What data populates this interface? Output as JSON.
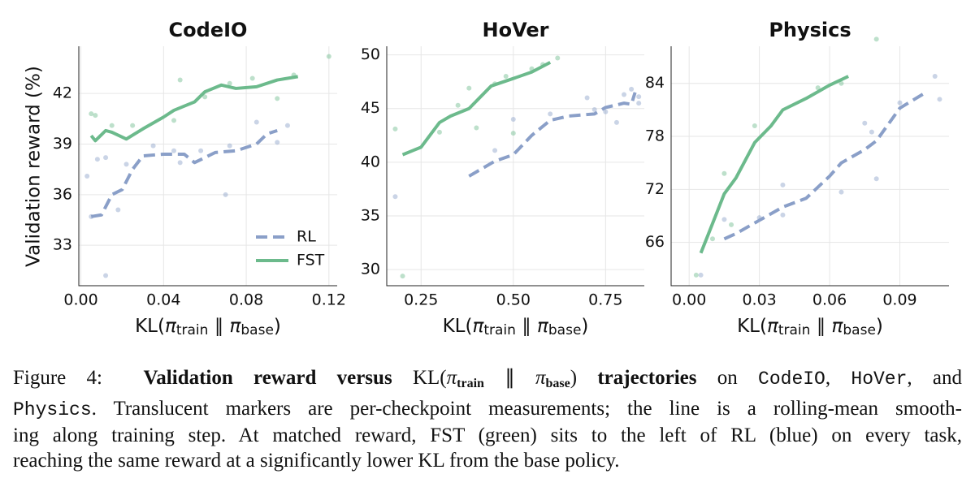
{
  "chart_data": [
    {
      "type": "line",
      "title": "CodeIO",
      "ylabel": "Validation reward (%)",
      "xlabel": [
        {
          "text": "KL(",
          "style": "normal"
        },
        {
          "text": "π",
          "style": "italic"
        },
        {
          "text": "train",
          "style": "sub"
        },
        {
          "text": " ∥ ",
          "style": "normal"
        },
        {
          "text": "π",
          "style": "italic"
        },
        {
          "text": "base",
          "style": "sub"
        },
        {
          "text": ")",
          "style": "normal"
        }
      ],
      "xlim": [
        -0.001,
        0.124
      ],
      "ylim": [
        30.6,
        44.8
      ],
      "xticks": [
        {
          "value": 0,
          "label": "0.00"
        },
        0.04,
        0.08,
        0.12
      ],
      "yticks": [
        33,
        36,
        39,
        42
      ],
      "grid": true,
      "legend": "lower right",
      "series": [
        {
          "name": "RL",
          "color": "#8a9fc8",
          "linestyle": "dashed",
          "x": [
            0.005,
            0.01,
            0.015,
            0.02,
            0.025,
            0.03,
            0.04,
            0.05,
            0.055,
            0.06,
            0.065,
            0.075,
            0.085,
            0.09,
            0.095
          ],
          "values": [
            34.7,
            34.8,
            36.0,
            36.3,
            37.5,
            38.3,
            38.4,
            38.4,
            37.9,
            38.2,
            38.5,
            38.6,
            39.0,
            39.6,
            39.8
          ],
          "points": {
            "x": [
              0.003,
              0.005,
              0.008,
              0.012,
              0.012,
              0.018,
              0.022,
              0.035,
              0.045,
              0.048,
              0.058,
              0.07,
              0.072,
              0.085,
              0.095,
              0.1
            ],
            "y": [
              37.1,
              34.7,
              38.1,
              38.2,
              31.2,
              35.1,
              37.8,
              38.9,
              38.6,
              37.9,
              38.6,
              36.0,
              38.9,
              40.3,
              39.1,
              40.1
            ]
          }
        },
        {
          "name": "FST",
          "color": "#6cba8c",
          "linestyle": "solid",
          "x": [
            0.005,
            0.007,
            0.012,
            0.015,
            0.022,
            0.03,
            0.04,
            0.045,
            0.055,
            0.06,
            0.068,
            0.075,
            0.085,
            0.095,
            0.105
          ],
          "values": [
            39.5,
            39.2,
            39.8,
            39.7,
            39.3,
            39.9,
            40.6,
            41.0,
            41.5,
            42.1,
            42.5,
            42.3,
            42.4,
            42.8,
            43.0
          ],
          "points": {
            "x": [
              0.005,
              0.007,
              0.015,
              0.025,
              0.045,
              0.048,
              0.06,
              0.072,
              0.083,
              0.095,
              0.103,
              0.12
            ],
            "y": [
              40.8,
              40.7,
              40.1,
              40.1,
              40.4,
              42.8,
              41.8,
              42.6,
              42.9,
              41.7,
              43.1,
              44.2
            ]
          }
        }
      ]
    },
    {
      "type": "line",
      "title": "HoVer",
      "xlabel": [
        {
          "text": "KL(",
          "style": "normal"
        },
        {
          "text": "π",
          "style": "italic"
        },
        {
          "text": "train",
          "style": "sub"
        },
        {
          "text": " ∥ ",
          "style": "normal"
        },
        {
          "text": "π",
          "style": "italic"
        },
        {
          "text": "base",
          "style": "sub"
        },
        {
          "text": ")",
          "style": "normal"
        }
      ],
      "xlim": [
        0.157,
        0.855
      ],
      "ylim": [
        28.5,
        50.8
      ],
      "xticks": [
        0.25,
        {
          "value": 0.5,
          "label": "0.50"
        },
        0.75
      ],
      "yticks": [
        30,
        35,
        40,
        45,
        50
      ],
      "grid": true,
      "series": [
        {
          "name": "RL",
          "color": "#8a9fc8",
          "linestyle": "dashed",
          "x": [
            0.38,
            0.45,
            0.5,
            0.55,
            0.6,
            0.65,
            0.72,
            0.75,
            0.8,
            0.82,
            0.83
          ],
          "values": [
            38.7,
            40.1,
            40.7,
            42.5,
            43.9,
            44.3,
            44.5,
            45.1,
            45.5,
            45.4,
            46.5
          ],
          "points": {
            "x": [
              0.18,
              0.45,
              0.5,
              0.6,
              0.7,
              0.72,
              0.75,
              0.78,
              0.8,
              0.82,
              0.84,
              0.84
            ],
            "y": [
              36.8,
              41.1,
              44.0,
              44.5,
              46.0,
              44.9,
              44.7,
              43.7,
              46.3,
              46.8,
              46.1,
              45.5
            ]
          }
        },
        {
          "name": "FST",
          "color": "#6cba8c",
          "linestyle": "solid",
          "x": [
            0.2,
            0.25,
            0.3,
            0.33,
            0.38,
            0.44,
            0.5,
            0.55,
            0.6
          ],
          "values": [
            40.7,
            41.4,
            43.7,
            44.3,
            45.0,
            47.1,
            47.8,
            48.4,
            49.3
          ],
          "points": {
            "x": [
              0.18,
              0.2,
              0.3,
              0.35,
              0.38,
              0.4,
              0.45,
              0.48,
              0.5,
              0.55,
              0.58,
              0.62
            ],
            "y": [
              43.1,
              29.4,
              42.8,
              45.3,
              46.9,
              43.2,
              47.3,
              48.0,
              42.7,
              48.7,
              49.1,
              49.7
            ]
          }
        }
      ]
    },
    {
      "type": "line",
      "title": "Physics",
      "xlabel": [
        {
          "text": "KL(",
          "style": "normal"
        },
        {
          "text": "π",
          "style": "italic"
        },
        {
          "text": "train",
          "style": "sub"
        },
        {
          "text": " ∥ ",
          "style": "normal"
        },
        {
          "text": "π",
          "style": "italic"
        },
        {
          "text": "base",
          "style": "sub"
        },
        {
          "text": ")",
          "style": "normal"
        }
      ],
      "xlim": [
        -0.0077,
        0.111
      ],
      "ylim": [
        61.1,
        88.2
      ],
      "xticks": [
        {
          "value": 0,
          "label": "0.00"
        },
        0.03,
        0.06,
        0.09
      ],
      "yticks": [
        66,
        72,
        78,
        84
      ],
      "grid": true,
      "series": [
        {
          "name": "RL",
          "color": "#8a9fc8",
          "linestyle": "dashed",
          "x": [
            0.015,
            0.02,
            0.03,
            0.04,
            0.05,
            0.06,
            0.065,
            0.075,
            0.08,
            0.09,
            0.1
          ],
          "values": [
            66.4,
            67.0,
            68.5,
            70.0,
            71.0,
            73.5,
            75.0,
            76.5,
            77.5,
            81.2,
            82.8
          ],
          "points": {
            "x": [
              0.005,
              0.015,
              0.03,
              0.04,
              0.04,
              0.065,
              0.075,
              0.078,
              0.08,
              0.09,
              0.105,
              0.107
            ],
            "y": [
              62.3,
              68.6,
              68.8,
              72.5,
              69.1,
              71.7,
              79.5,
              78.5,
              73.2,
              81.8,
              84.8,
              82.2
            ]
          }
        },
        {
          "name": "FST",
          "color": "#6cba8c",
          "linestyle": "solid",
          "x": [
            0.005,
            0.008,
            0.015,
            0.02,
            0.028,
            0.035,
            0.04,
            0.05,
            0.06,
            0.068
          ],
          "values": [
            64.8,
            66.8,
            71.5,
            73.3,
            77.3,
            79.2,
            81.0,
            82.3,
            83.8,
            84.8
          ],
          "points": {
            "x": [
              0.003,
              0.01,
              0.015,
              0.018,
              0.028,
              0.055,
              0.065,
              0.08
            ],
            "y": [
              62.3,
              66.4,
              73.8,
              68.0,
              79.2,
              83.5,
              84.0,
              89.0
            ]
          }
        }
      ]
    }
  ],
  "caption": {
    "lines": [
      [
        {
          "text": "Figure 4:  ",
          "style": "normal"
        },
        {
          "text": "Validation reward versus ",
          "style": "bold"
        },
        {
          "text": "KL(",
          "style": "normal"
        },
        {
          "text": "π",
          "style": "italic"
        },
        {
          "text": "train",
          "style": "boldsub"
        },
        {
          "text": " ∥ ",
          "style": "normal"
        },
        {
          "text": "π",
          "style": "italic"
        },
        {
          "text": "base",
          "style": "boldsub"
        },
        {
          "text": ") ",
          "style": "normal"
        },
        {
          "text": "trajectories",
          "style": "bold"
        },
        {
          "text": " on ",
          "style": "normal"
        },
        {
          "text": "CodeIO",
          "style": "mono"
        },
        {
          "text": ", ",
          "style": "normal"
        },
        {
          "text": "HoVer",
          "style": "mono"
        },
        {
          "text": ", and",
          "style": "normal"
        }
      ],
      [
        {
          "text": "Physics",
          "style": "mono"
        },
        {
          "text": ". Translucent markers are per-checkpoint measurements; the line is a rolling-mean smooth-",
          "style": "normal"
        }
      ],
      [
        {
          "text": "ing along training step. At matched reward, FST (green) sits to the left of RL (blue) on every task,",
          "style": "normal"
        }
      ],
      [
        {
          "text": "reaching the same reward at a significantly lower KL from the base policy.",
          "style": "normal"
        }
      ]
    ]
  }
}
